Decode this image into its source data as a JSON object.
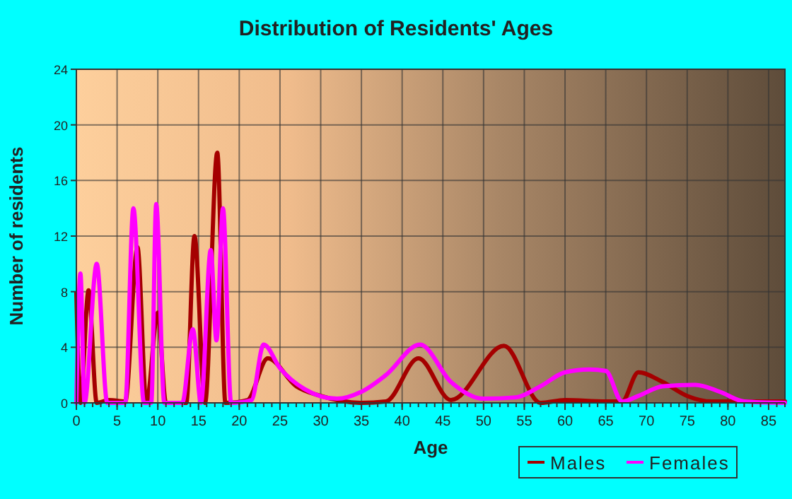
{
  "chart_data": {
    "type": "line",
    "title": "Distribution of Residents' Ages",
    "xlabel": "Age",
    "ylabel": "Number of residents",
    "xlim": [
      0,
      87
    ],
    "xticks": [
      0,
      5,
      10,
      15,
      20,
      25,
      30,
      35,
      40,
      45,
      50,
      55,
      60,
      65,
      70,
      75,
      80,
      85
    ],
    "ylim": [
      0,
      24
    ],
    "yticks": [
      0,
      4,
      8,
      12,
      16,
      20,
      24
    ],
    "grid": true,
    "legend": "bottom",
    "line_style": "solid",
    "series": [
      {
        "name": "Males",
        "color": "#a50000",
        "x": [
          0,
          0.5,
          1.5,
          2.5,
          4,
          6,
          7.5,
          8.6,
          10,
          11,
          13.5,
          14.5,
          15.8,
          17.3,
          18.3,
          21,
          23.5,
          27,
          30,
          35,
          38,
          42,
          46,
          52.5,
          57,
          60,
          65,
          67,
          69,
          72,
          75,
          78,
          87
        ],
        "values": [
          7.9,
          0,
          8.1,
          0,
          0.2,
          0.1,
          11.2,
          0,
          6.5,
          0,
          0,
          12,
          0,
          18,
          0,
          0.2,
          3.2,
          1.2,
          0.5,
          0,
          0.1,
          3.2,
          0.2,
          4.1,
          0,
          0.2,
          0.1,
          0.1,
          2.2,
          1.5,
          0.5,
          0.1,
          0.1
        ]
      },
      {
        "name": "Females",
        "color": "#ff00ff",
        "x": [
          0,
          0.5,
          1,
          2.5,
          3.8,
          6,
          7,
          8.3,
          9.2,
          9.8,
          10.8,
          13,
          14.3,
          15.3,
          16.5,
          17.2,
          18,
          19,
          21.5,
          23,
          25,
          28,
          32,
          35,
          38,
          42.2,
          46,
          50,
          54,
          57,
          60,
          63,
          65,
          67,
          69,
          72,
          76,
          79,
          82,
          87
        ],
        "values": [
          0,
          9.3,
          0,
          10,
          0,
          0,
          14,
          0,
          0,
          14.3,
          0,
          0,
          5.3,
          0,
          11,
          4.5,
          14,
          0,
          0.2,
          4.2,
          2.5,
          1,
          0.3,
          0.8,
          2,
          4.2,
          1.5,
          0.3,
          0.4,
          1.2,
          2.2,
          2.4,
          2.3,
          0.1,
          0.5,
          1.2,
          1.3,
          0.8,
          0.1,
          0
        ]
      }
    ]
  }
}
